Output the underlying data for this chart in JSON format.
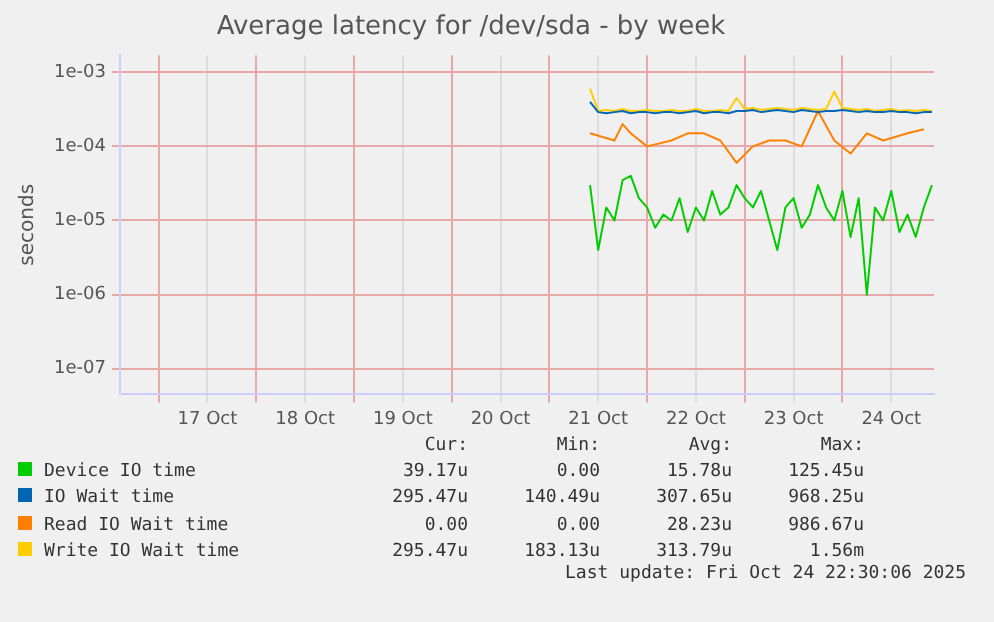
{
  "chart_data": {
    "type": "line",
    "title": "Average latency for /dev/sda - by week",
    "ylabel": "seconds",
    "log": "y",
    "grid": true,
    "legend": "bottom",
    "marker": "none",
    "line_style": "solid",
    "xlim": [
      "2025-10-16T14:30",
      "2025-10-24T22:30"
    ],
    "xticks": [
      {
        "value": "2025-10-17T00:00",
        "label": null
      },
      {
        "value": "2025-10-17T12:00",
        "label": "17 Oct"
      },
      {
        "value": "2025-10-18T00:00",
        "label": null
      },
      {
        "value": "2025-10-18T12:00",
        "label": "18 Oct"
      },
      {
        "value": "2025-10-19T00:00",
        "label": null
      },
      {
        "value": "2025-10-19T12:00",
        "label": "19 Oct"
      },
      {
        "value": "2025-10-20T00:00",
        "label": null
      },
      {
        "value": "2025-10-20T12:00",
        "label": "20 Oct"
      },
      {
        "value": "2025-10-21T00:00",
        "label": null
      },
      {
        "value": "2025-10-21T12:00",
        "label": "21 Oct"
      },
      {
        "value": "2025-10-22T00:00",
        "label": null
      },
      {
        "value": "2025-10-22T12:00",
        "label": "22 Oct"
      },
      {
        "value": "2025-10-23T00:00",
        "label": null
      },
      {
        "value": "2025-10-23T12:00",
        "label": "23 Oct"
      },
      {
        "value": "2025-10-24T00:00",
        "label": null
      },
      {
        "value": "2025-10-24T12:00",
        "label": "24 Oct"
      }
    ],
    "ylim": [
      4.5e-08,
      0.0017
    ],
    "yticks": [
      {
        "value": 1e-07,
        "label": "1e-07"
      },
      {
        "value": 1e-06,
        "label": "1e-06"
      },
      {
        "value": 1e-05,
        "label": "1e-05"
      },
      {
        "value": 0.0001,
        "label": "1e-04"
      },
      {
        "value": 0.001,
        "label": "1e-03"
      }
    ],
    "x": [
      "2025-10-21T10:00",
      "2025-10-21T12:00",
      "2025-10-21T14:00",
      "2025-10-21T16:00",
      "2025-10-21T18:00",
      "2025-10-21T20:00",
      "2025-10-21T22:00",
      "2025-10-22T00:00",
      "2025-10-22T02:00",
      "2025-10-22T04:00",
      "2025-10-22T06:00",
      "2025-10-22T08:00",
      "2025-10-22T10:00",
      "2025-10-22T12:00",
      "2025-10-22T14:00",
      "2025-10-22T16:00",
      "2025-10-22T18:00",
      "2025-10-22T20:00",
      "2025-10-22T22:00",
      "2025-10-23T00:00",
      "2025-10-23T02:00",
      "2025-10-23T04:00",
      "2025-10-23T06:00",
      "2025-10-23T08:00",
      "2025-10-23T10:00",
      "2025-10-23T12:00",
      "2025-10-23T14:00",
      "2025-10-23T16:00",
      "2025-10-23T18:00",
      "2025-10-23T20:00",
      "2025-10-23T22:00",
      "2025-10-24T00:00",
      "2025-10-24T02:00",
      "2025-10-24T04:00",
      "2025-10-24T06:00",
      "2025-10-24T08:00",
      "2025-10-24T10:00",
      "2025-10-24T12:00",
      "2025-10-24T14:00",
      "2025-10-24T16:00",
      "2025-10-24T18:00",
      "2025-10-24T20:00",
      "2025-10-24T22:00"
    ],
    "series": [
      {
        "name": "Device IO time",
        "color": "#00cc00",
        "values": [
          3e-05,
          4e-06,
          1.5e-05,
          1e-05,
          3.5e-05,
          4e-05,
          2e-05,
          1.5e-05,
          8e-06,
          1.2e-05,
          1e-05,
          2e-05,
          7e-06,
          1.5e-05,
          1e-05,
          2.5e-05,
          1.2e-05,
          1.5e-05,
          3e-05,
          2e-05,
          1.5e-05,
          2.5e-05,
          1e-05,
          4e-06,
          1.5e-05,
          2e-05,
          8e-06,
          1.2e-05,
          3e-05,
          1.5e-05,
          1e-05,
          2.5e-05,
          6e-06,
          2e-05,
          1e-06,
          1.5e-05,
          1e-05,
          2.5e-05,
          7e-06,
          1.2e-05,
          6e-06,
          1.5e-05,
          3e-05
        ]
      },
      {
        "name": "IO Wait time",
        "color": "#0066b3",
        "values": [
          0.0004,
          0.00029,
          0.00028,
          0.00029,
          0.0003,
          0.00028,
          0.00029,
          0.00029,
          0.00028,
          0.00029,
          0.00029,
          0.00028,
          0.00029,
          0.0003,
          0.00028,
          0.00029,
          0.00029,
          0.00028,
          0.0003,
          0.0003,
          0.00031,
          0.00029,
          0.0003,
          0.00031,
          0.0003,
          0.00029,
          0.00031,
          0.0003,
          0.00029,
          0.0003,
          0.0003,
          0.00031,
          0.0003,
          0.00029,
          0.0003,
          0.00029,
          0.00029,
          0.0003,
          0.00029,
          0.00029,
          0.00028,
          0.00029,
          0.00029
        ]
      },
      {
        "name": "Read IO Wait time",
        "color": "#ff8000",
        "values": [
          0.00015,
          null,
          null,
          0.00012,
          0.0002,
          0.00015,
          null,
          0.0001,
          null,
          null,
          0.00012,
          null,
          0.00015,
          null,
          0.00015,
          null,
          0.00012,
          null,
          6e-05,
          null,
          0.0001,
          null,
          0.00012,
          null,
          0.00012,
          null,
          0.0001,
          null,
          0.0003,
          null,
          0.00012,
          null,
          8e-05,
          null,
          0.00015,
          null,
          0.00012,
          null,
          null,
          0.00015,
          null,
          0.00017,
          null
        ]
      },
      {
        "name": "Write IO Wait time",
        "color": "#ffcc00",
        "values": [
          0.0006,
          0.0003,
          0.00031,
          0.0003,
          0.00032,
          0.0003,
          0.0003,
          0.00031,
          0.0003,
          0.0003,
          0.00031,
          0.0003,
          0.0003,
          0.00032,
          0.0003,
          0.0003,
          0.00031,
          0.0003,
          0.00045,
          0.00032,
          0.00033,
          0.00031,
          0.00032,
          0.00033,
          0.00032,
          0.00031,
          0.00033,
          0.00032,
          0.00031,
          0.00032,
          0.00055,
          0.00033,
          0.00032,
          0.00031,
          0.00032,
          0.0003,
          0.00031,
          0.00032,
          0.0003,
          0.00031,
          0.0003,
          0.00031,
          0.0003
        ]
      }
    ],
    "annotations": [
      "Cur:",
      "Min:",
      "Avg:",
      "Max:",
      "39.17u",
      "0.00",
      "15.78u",
      "125.45u",
      "295.47u",
      "140.49u",
      "307.65u",
      "968.25u",
      "0.00",
      "0.00",
      "28.23u",
      "986.67u",
      "295.47u",
      "183.13u",
      "313.79u",
      "1.56m",
      "Last update: Fri Oct 24 22:30:06 2025"
    ]
  }
}
